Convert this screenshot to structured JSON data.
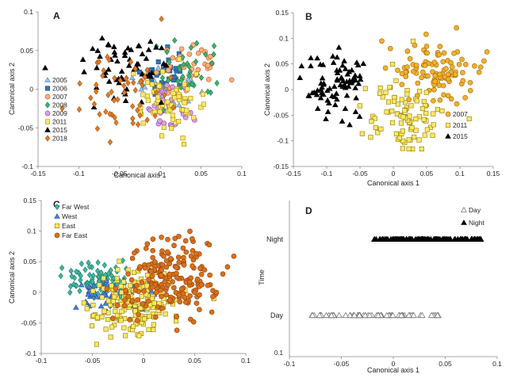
{
  "charts": [
    {
      "panel": "A",
      "type": "scatter",
      "xlabel": "Canonical axis 1",
      "ylabel": "Canonical axis 2",
      "xlim": [
        -0.15,
        0.1
      ],
      "ylim": [
        -0.1,
        0.1
      ],
      "xticks": [
        -0.15,
        -0.1,
        -0.05,
        0,
        0.05,
        0.1
      ],
      "yticks": [
        -0.1,
        -0.05,
        0,
        0.05,
        0.1
      ],
      "tick_labels_x": [
        "-0.15",
        "-0.1",
        "-0.05",
        "0",
        "0.05",
        "0.1"
      ],
      "tick_labels_y": [
        "-0.1",
        "-0.05",
        "0",
        "0.05",
        "0.1"
      ],
      "legend_position": "left",
      "series": [
        {
          "name": "2005",
          "marker": "triangle",
          "color": "#9dc3e6",
          "stroke": "#4f81bd",
          "center": [
            0.005,
            0.0
          ],
          "spread": [
            0.02,
            0.015
          ],
          "n": 25
        },
        {
          "name": "2006",
          "marker": "square",
          "color": "#2e75b6",
          "stroke": "#1f4e79",
          "center": [
            0.005,
            0.02
          ],
          "spread": [
            0.015,
            0.015
          ],
          "n": 30
        },
        {
          "name": "2007",
          "marker": "circle",
          "color": "#f4b183",
          "stroke": "#c55a11",
          "center": [
            0.035,
            0.025
          ],
          "spread": [
            0.02,
            0.015
          ],
          "n": 40
        },
        {
          "name": "2008",
          "marker": "diamond",
          "color": "#3cb371",
          "stroke": "#1e7a45",
          "center": [
            0.03,
            0.02
          ],
          "spread": [
            0.02,
            0.02
          ],
          "n": 40
        },
        {
          "name": "2009",
          "marker": "circle",
          "color": "#d9a0e0",
          "stroke": "#8e44ad",
          "center": [
            0.015,
            -0.02
          ],
          "spread": [
            0.015,
            0.015
          ],
          "n": 30
        },
        {
          "name": "2011",
          "marker": "square",
          "color": "#ffe766",
          "stroke": "#a08a00",
          "center": [
            0.01,
            -0.015
          ],
          "spread": [
            0.022,
            0.02
          ],
          "n": 70
        },
        {
          "name": "2015",
          "marker": "triangle",
          "color": "#000000",
          "stroke": "#000000",
          "center": [
            -0.045,
            0.025
          ],
          "spread": [
            0.025,
            0.02
          ],
          "n": 60
        },
        {
          "name": "2018",
          "marker": "diamond",
          "color": "#e07b2a",
          "stroke": "#a0520f",
          "center": [
            -0.045,
            -0.005
          ],
          "spread": [
            0.03,
            0.025
          ],
          "n": 55
        }
      ]
    },
    {
      "panel": "B",
      "type": "scatter",
      "xlabel": "Canonical axis 1",
      "ylabel": "Canonical axis 2",
      "xlim": [
        -0.15,
        0.15
      ],
      "ylim": [
        -0.15,
        0.15
      ],
      "xticks": [
        -0.15,
        -0.1,
        -0.05,
        0,
        0.05,
        0.1,
        0.15
      ],
      "yticks": [
        -0.15,
        -0.1,
        -0.05,
        0,
        0.05,
        0.1,
        0.15
      ],
      "tick_labels_x": [
        "-0.15",
        "-0.1",
        "-0.05",
        "0",
        "0.05",
        "0.1",
        "0.15"
      ],
      "tick_labels_y": [
        "-0.15",
        "-0.1",
        "-0.05",
        "0",
        "0.05",
        "0.1",
        "0.15"
      ],
      "legend_position": "right",
      "series": [
        {
          "name": "2007",
          "marker": "circle",
          "color": "#f0b030",
          "stroke": "#a06a00",
          "center": [
            0.065,
            0.03
          ],
          "spread": [
            0.03,
            0.03
          ],
          "n": 100
        },
        {
          "name": "2011",
          "marker": "square",
          "color": "#ffe766",
          "stroke": "#8a7a00",
          "center": [
            0.015,
            -0.05
          ],
          "spread": [
            0.03,
            0.035
          ],
          "n": 90
        },
        {
          "name": "2015",
          "marker": "triangle",
          "color": "#000000",
          "stroke": "#000000",
          "center": [
            -0.085,
            0.015
          ],
          "spread": [
            0.025,
            0.03
          ],
          "n": 80
        }
      ]
    },
    {
      "panel": "C",
      "type": "scatter",
      "xlabel": "",
      "ylabel": "Canonical axis 2",
      "xlim": [
        -0.1,
        0.1
      ],
      "ylim": [
        -0.1,
        0.15
      ],
      "xticks": [
        -0.1,
        -0.05,
        0,
        0.05,
        0.1
      ],
      "yticks": [
        -0.1,
        -0.05,
        0,
        0.05,
        0.1,
        0.15
      ],
      "tick_labels_x": [
        "-0.1",
        "-0.05",
        "0",
        "0.05",
        "0.1"
      ],
      "tick_labels_y": [
        "-0.1",
        "-0.05",
        "0",
        "0.05",
        "0.1",
        "0.15"
      ],
      "legend_position": "top-left",
      "series": [
        {
          "name": "Far West",
          "marker": "diamond",
          "color": "#3cb8a0",
          "stroke": "#1c7a66",
          "center": [
            -0.045,
            0.02
          ],
          "spread": [
            0.015,
            0.015
          ],
          "n": 80
        },
        {
          "name": "West",
          "marker": "triangle",
          "color": "#4a7fd4",
          "stroke": "#23509a",
          "center": [
            -0.03,
            -0.005
          ],
          "spread": [
            0.02,
            0.015
          ],
          "n": 50
        },
        {
          "name": "East",
          "marker": "square",
          "color": "#ffe766",
          "stroke": "#8a7a00",
          "center": [
            -0.01,
            -0.02
          ],
          "spread": [
            0.02,
            0.025
          ],
          "n": 180
        },
        {
          "name": "Far East",
          "marker": "circle",
          "color": "#d9701c",
          "stroke": "#8f430a",
          "center": [
            0.025,
            0.02
          ],
          "spread": [
            0.025,
            0.03
          ],
          "n": 200
        }
      ]
    },
    {
      "panel": "D",
      "type": "scatter",
      "xlabel": "Canonical axis 1",
      "ylabel": "Time",
      "xlim": [
        -0.1,
        0.1
      ],
      "xticks": [
        -0.1,
        -0.05,
        0,
        0.05,
        0.1
      ],
      "tick_labels_x": [
        "-0.1",
        "-0.05",
        "0",
        "0.05",
        "0.1"
      ],
      "categories": [
        "Day",
        "Night"
      ],
      "corner_label": "0.1",
      "legend_position": "top-right",
      "series": [
        {
          "name": "Day",
          "marker": "triangle-open",
          "color": "#ffffff",
          "stroke": "#777777",
          "category": "Day",
          "range": [
            -0.08,
            0.045
          ],
          "n": 70
        },
        {
          "name": "Night",
          "marker": "triangle",
          "color": "#000000",
          "stroke": "#000000",
          "category": "Night",
          "range": [
            -0.02,
            0.085
          ],
          "n": 110
        }
      ]
    }
  ]
}
